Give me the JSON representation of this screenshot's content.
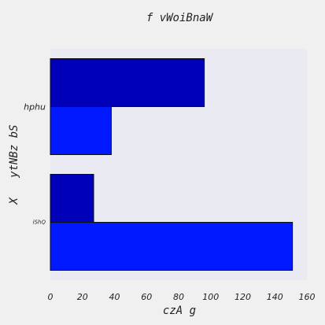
{
  "colors": {
    "figure_bg": "#f0f0f0",
    "plot_bg": "#eaeaf2",
    "bar_edge": "#111111"
  },
  "chart_data": {
    "type": "bar",
    "orientation": "horizontal",
    "title": "f vWoiBnaW",
    "xlabel": "czA g",
    "ylabel": "X   ytNBz bS",
    "categories": [
      "hphu",
      "iShQ"
    ],
    "series": [
      {
        "color": "#0000b8",
        "values": [
          96,
          27
        ]
      },
      {
        "color": "#0019ff",
        "values": [
          38,
          151
        ]
      }
    ],
    "xlim": [
      0,
      160
    ],
    "xticks": [
      0,
      20,
      40,
      60,
      80,
      100,
      120,
      140,
      160
    ],
    "grid": false,
    "legend": "none"
  }
}
